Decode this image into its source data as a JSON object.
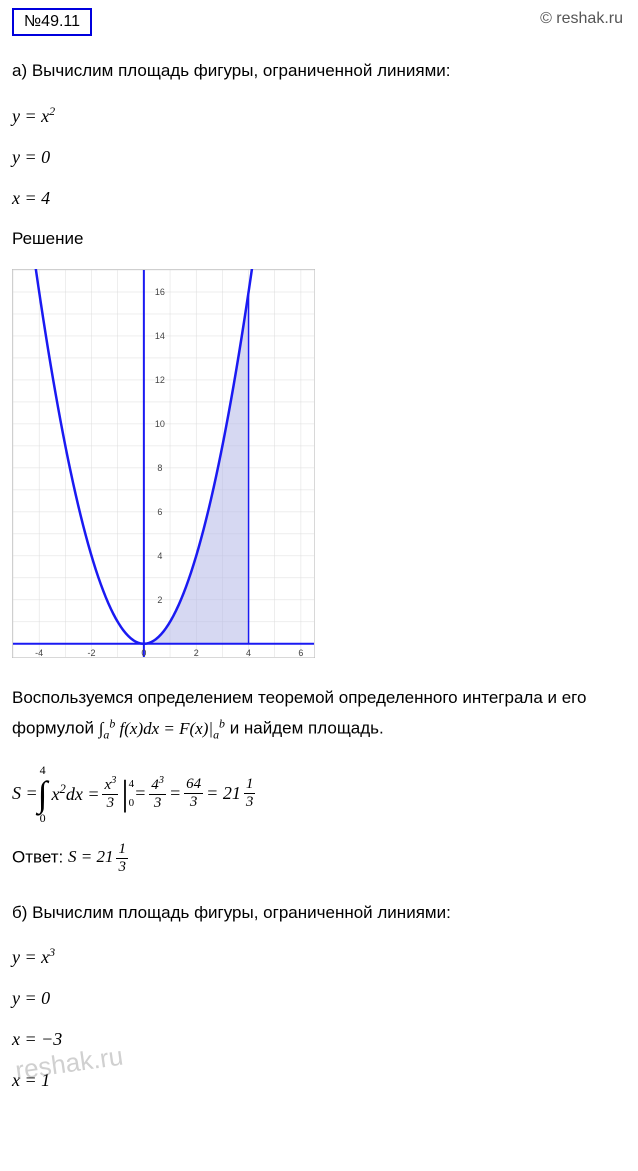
{
  "problem_number": "№49.11",
  "watermark": "© reshak.ru",
  "part_a": {
    "prompt": "а) Вычислим площадь фигуры, ограниченной линиями:",
    "eq1": "y = x²",
    "eq2": "y = 0",
    "eq3": "x = 4",
    "solution_label": "Решение",
    "theorem_text_1": "Воспользуемся определением теоремой определенного интеграла и его",
    "theorem_text_2": "формулой ",
    "theorem_text_3": " и найдем площадь.",
    "answer_label": "Ответ:  ",
    "answer_value": "S = 21",
    "answer_frac_num": "1",
    "answer_frac_den": "3"
  },
  "part_b": {
    "prompt": "б) Вычислим площадь фигуры, ограниченной линиями:",
    "eq1": "y = x³",
    "eq2": "y = 0",
    "eq3": "x = −3",
    "eq4": "x = 1"
  },
  "chart": {
    "type": "area-under-curve",
    "functions": [
      "y = x^2"
    ],
    "shaded_region": {
      "x_from": 0,
      "x_to": 4,
      "color": "#b4b8e8",
      "opacity": 0.55
    },
    "curve_color": "#1a1af2",
    "curve_width": 2.5,
    "axis_color": "#1a1af2",
    "xlim": [
      -5,
      6.5
    ],
    "ylim": [
      -0.6,
      17
    ],
    "xticks": [
      -4,
      -2,
      0,
      2,
      4,
      6
    ],
    "yticks": [
      2,
      4,
      6,
      8,
      10,
      12,
      14,
      16
    ],
    "grid_color": "#dcdcdc",
    "background_color": "#ffffff",
    "border_color": "#b0b0b0",
    "tick_fontsize": 9,
    "tick_color": "#444444"
  },
  "watermark_bottom": "reshak.ru"
}
